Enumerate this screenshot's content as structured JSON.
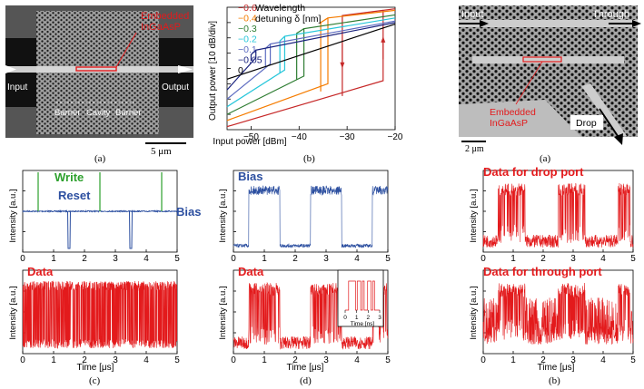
{
  "panel_labels": {
    "top_left": "(a)",
    "top_middle": "(b)",
    "top_right": "(a)",
    "bottom_c": "(c)",
    "bottom_d": "(d)",
    "bottom_right": "(b)"
  },
  "sem_left": {
    "title_line1": "Embedded",
    "title_line2": "InGaAsP",
    "input_label": "Input",
    "output_label": "Output",
    "barrier_left": "Barrier",
    "cavity": "Cavity",
    "barrier_right": "Barrier",
    "scale_bar": "5 μm"
  },
  "sem_right": {
    "input_label": "Input",
    "through_label": "Through",
    "drop_label": "Drop",
    "embedded_line1": "Embedded",
    "embedded_line2": "InGaAsP",
    "scale_bar": "2 μm"
  },
  "colors": {
    "red": "#e31a1c",
    "blue": "#2c4fa0",
    "green": "#2ca02c",
    "black": "#000000"
  },
  "chart_data": [
    {
      "id": "hysteresis",
      "type": "line",
      "title": "",
      "xlabel": "Input power [dBm]",
      "ylabel": "Output power [10 dB/div]",
      "xlim": [
        -55,
        -20
      ],
      "ylim": [
        0,
        8
      ],
      "xticks": [
        -50,
        -40,
        -30,
        -20
      ],
      "xtick_labels": [
        "−50",
        "−40",
        "−30",
        "−20"
      ],
      "legend_title_line1": "Wavelength",
      "legend_title_line2": "detuning δ [nm]",
      "series": [
        {
          "name": "−0.6",
          "color": "#c62828",
          "up": [
            [
              -55,
              0.2
            ],
            [
              -22.5,
              3.2
            ]
          ],
          "jump_up": -22.5,
          "top": [
            [
              -22.5,
              7.8
            ],
            [
              -20,
              7.9
            ]
          ],
          "down_at": -31,
          "down": [
            [
              -31,
              2.2
            ],
            [
              -31,
              7.3
            ],
            [
              -20,
              7.9
            ]
          ]
        },
        {
          "name": "−0.4",
          "color": "#f57c00",
          "up": [
            [
              -55,
              0.6
            ],
            [
              -34,
              3.0
            ]
          ],
          "jump_up": -34,
          "top": [
            [
              -34,
              7.3
            ],
            [
              -20,
              7.8
            ]
          ],
          "down_at": -35.5,
          "down": [
            [
              -35.5,
              2.5
            ]
          ]
        },
        {
          "name": "−0.3",
          "color": "#2e7d32",
          "up": [
            [
              -55,
              1.0
            ],
            [
              -39,
              3.5
            ]
          ],
          "jump_up": -39,
          "top": [
            [
              -39,
              6.6
            ],
            [
              -20,
              7.5
            ]
          ],
          "down_at": -40.5,
          "down": [
            [
              -40.5,
              3.3
            ]
          ]
        },
        {
          "name": "−0.2",
          "color": "#26c6da",
          "up": [
            [
              -55,
              1.5
            ],
            [
              -43,
              3.9
            ]
          ],
          "jump_up": -43,
          "top": [
            [
              -43,
              6.1
            ],
            [
              -20,
              7.3
            ]
          ],
          "down_at": -44,
          "down": [
            [
              -44,
              3.7
            ]
          ]
        },
        {
          "name": "−0.1",
          "color": "#5c6bc0",
          "up": [
            [
              -55,
              2.0
            ],
            [
              -46,
              4.3
            ]
          ],
          "jump_up": -46,
          "top": [
            [
              -46,
              5.6
            ],
            [
              -20,
              7.1
            ]
          ],
          "down_at": -47,
          "down": [
            [
              -47,
              4.1
            ]
          ]
        },
        {
          "name": "−0.05",
          "color": "#1a237e",
          "up": [
            [
              -55,
              2.6
            ],
            [
              -49,
              4.7
            ]
          ],
          "jump_up": -49,
          "top": [
            [
              -49,
              5.2
            ],
            [
              -20,
              7.0
            ]
          ],
          "down_at": -50,
          "down": [
            [
              -50,
              4.5
            ]
          ]
        },
        {
          "name": "0",
          "color": "#000000",
          "up": [
            [
              -55,
              3.3
            ],
            [
              -20,
              6.9
            ]
          ],
          "jump_up": null,
          "top": [],
          "down_at": null,
          "down": []
        }
      ]
    },
    {
      "id": "bias_write_reset",
      "type": "line",
      "xlabel": "",
      "ylabel": "Intensity [a.u.]",
      "xlim": [
        0,
        5
      ],
      "xticks": [
        0,
        1,
        2,
        3,
        4,
        5
      ],
      "labels": {
        "write": "Write",
        "reset": "Reset",
        "bias": "Bias"
      },
      "write_times": [
        0.5,
        2.5,
        4.5
      ],
      "reset_times": [
        1.5,
        3.5
      ]
    },
    {
      "id": "data_c",
      "type": "line",
      "xlabel": "Time [μs]",
      "ylabel": "Intensity [a.u.]",
      "xlim": [
        0,
        5
      ],
      "xticks": [
        0,
        1,
        2,
        3,
        4,
        5
      ],
      "label": "Data"
    },
    {
      "id": "bias_d",
      "type": "line",
      "ylabel": "Intensity [a.u.]",
      "xlim": [
        0,
        5
      ],
      "xticks": [
        0,
        1,
        2,
        3,
        4,
        5
      ],
      "label": "Bias",
      "high_intervals": [
        [
          0.5,
          1.5
        ],
        [
          2.5,
          3.5
        ],
        [
          4.5,
          5.0
        ]
      ]
    },
    {
      "id": "data_d",
      "type": "line",
      "xlabel": "Time [μs]",
      "ylabel": "Intensity [a.u.]",
      "xlim": [
        0,
        5
      ],
      "xticks": [
        0,
        1,
        2,
        3,
        4,
        5
      ],
      "label": "Data",
      "high_intervals": [
        [
          0.5,
          1.5
        ],
        [
          2.5,
          3.5
        ],
        [
          4.5,
          5.0
        ]
      ],
      "inset": {
        "xlabel": "Time [ns]",
        "xticks": [
          0,
          1,
          2,
          3
        ]
      }
    },
    {
      "id": "drop_port",
      "type": "line",
      "ylabel": "Intensity [a.u.]",
      "xlim": [
        0,
        5
      ],
      "xticks": [
        0,
        1,
        2,
        3,
        4,
        5
      ],
      "label": "Data for drop port",
      "high_intervals": [
        [
          0.5,
          1.4
        ],
        [
          2.5,
          3.4
        ],
        [
          4.5,
          4.9
        ]
      ]
    },
    {
      "id": "through_port",
      "type": "line",
      "xlabel": "Time [μs]",
      "ylabel": "Intensity [a.u.]",
      "xlim": [
        0,
        5
      ],
      "xticks": [
        0,
        1,
        2,
        3,
        4,
        5
      ],
      "label": "Data for through port",
      "high_intervals": [
        [
          0.5,
          1.4
        ],
        [
          2.5,
          3.4
        ],
        [
          4.5,
          4.9
        ]
      ]
    }
  ]
}
